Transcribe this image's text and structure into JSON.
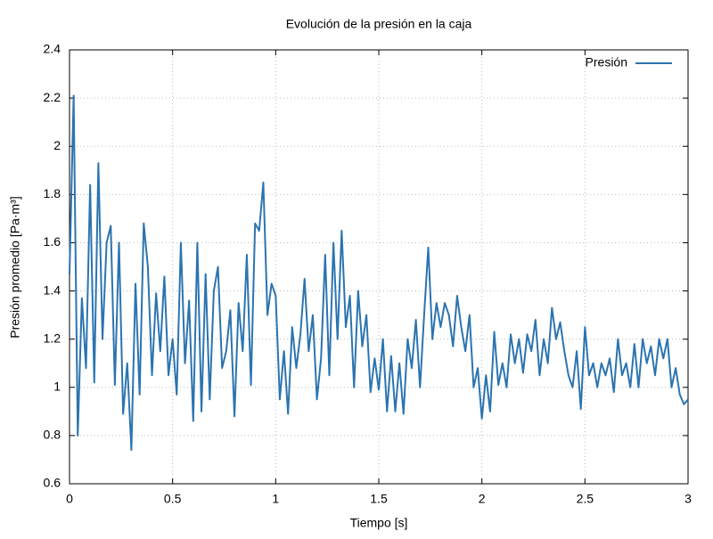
{
  "chart_data": {
    "type": "line",
    "title": "Evolución de la presión en la caja",
    "xlabel": "Tiempo [s]",
    "ylabel": "Presión promedio [Pa·m³]",
    "x": [
      0,
      0.02,
      0.04,
      0.06,
      0.08,
      0.1,
      0.12,
      0.14,
      0.16,
      0.18,
      0.2,
      0.22,
      0.24,
      0.26,
      0.28,
      0.3,
      0.32,
      0.34,
      0.36,
      0.38,
      0.4,
      0.42,
      0.44,
      0.46,
      0.48,
      0.5,
      0.52,
      0.54,
      0.56,
      0.58,
      0.6,
      0.62,
      0.64,
      0.66,
      0.68,
      0.7,
      0.72,
      0.74,
      0.76,
      0.78,
      0.8,
      0.82,
      0.84,
      0.86,
      0.88,
      0.9,
      0.92,
      0.94,
      0.96,
      0.98,
      1,
      1.02,
      1.04,
      1.06,
      1.08,
      1.1,
      1.12,
      1.14,
      1.16,
      1.18,
      1.2,
      1.22,
      1.24,
      1.26,
      1.28,
      1.3,
      1.32,
      1.34,
      1.36,
      1.38,
      1.4,
      1.42,
      1.44,
      1.46,
      1.48,
      1.5,
      1.52,
      1.54,
      1.56,
      1.58,
      1.6,
      1.62,
      1.64,
      1.66,
      1.68,
      1.7,
      1.72,
      1.74,
      1.76,
      1.78,
      1.8,
      1.82,
      1.84,
      1.86,
      1.88,
      1.9,
      1.92,
      1.94,
      1.96,
      1.98,
      2,
      2.02,
      2.04,
      2.06,
      2.08,
      2.1,
      2.12,
      2.14,
      2.16,
      2.18,
      2.2,
      2.22,
      2.24,
      2.26,
      2.28,
      2.3,
      2.32,
      2.34,
      2.36,
      2.38,
      2.4,
      2.42,
      2.44,
      2.46,
      2.48,
      2.5,
      2.52,
      2.54,
      2.56,
      2.58,
      2.6,
      2.62,
      2.64,
      2.66,
      2.68,
      2.7,
      2.72,
      2.74,
      2.76,
      2.78,
      2.8,
      2.82,
      2.84,
      2.86,
      2.88,
      2.9,
      2.92,
      2.94,
      2.96,
      2.98,
      3
    ],
    "series": [
      {
        "name": "Presión",
        "color": "#2b74b0",
        "values": [
          1.47,
          2.21,
          0.8,
          1.37,
          1.08,
          1.84,
          1.02,
          1.93,
          1.2,
          1.6,
          1.67,
          1.01,
          1.6,
          0.89,
          1.1,
          0.74,
          1.43,
          0.97,
          1.68,
          1.5,
          1.05,
          1.39,
          1.15,
          1.46,
          1.05,
          1.2,
          0.97,
          1.6,
          1.1,
          1.36,
          0.86,
          1.6,
          0.9,
          1.47,
          0.95,
          1.4,
          1.5,
          1.08,
          1.15,
          1.32,
          0.88,
          1.35,
          1.15,
          1.55,
          1.01,
          1.68,
          1.65,
          1.85,
          1.3,
          1.43,
          1.38,
          0.95,
          1.15,
          0.89,
          1.25,
          1.08,
          1.22,
          1.45,
          1.15,
          1.3,
          0.95,
          1.12,
          1.55,
          1.05,
          1.6,
          1.2,
          1.65,
          1.25,
          1.38,
          1.0,
          1.4,
          1.17,
          1.3,
          0.98,
          1.12,
          0.99,
          1.2,
          0.9,
          1.13,
          0.9,
          1.1,
          0.89,
          1.2,
          1.08,
          1.28,
          1.0,
          1.3,
          1.58,
          1.2,
          1.35,
          1.25,
          1.35,
          1.3,
          1.17,
          1.38,
          1.25,
          1.15,
          1.3,
          1.0,
          1.08,
          0.87,
          1.05,
          0.9,
          1.23,
          1.01,
          1.1,
          1.0,
          1.22,
          1.1,
          1.2,
          1.06,
          1.22,
          1.15,
          1.28,
          1.05,
          1.2,
          1.1,
          1.33,
          1.2,
          1.27,
          1.15,
          1.05,
          1.0,
          1.15,
          0.91,
          1.25,
          1.05,
          1.1,
          1.0,
          1.1,
          1.05,
          1.12,
          0.98,
          1.2,
          1.05,
          1.1,
          1.0,
          1.18,
          1.0,
          1.2,
          1.1,
          1.17,
          1.05,
          1.2,
          1.12,
          1.2,
          1.0,
          1.08,
          0.97,
          0.93,
          0.95
        ]
      }
    ],
    "xlim": [
      0,
      3
    ],
    "xticks": [
      0,
      0.5,
      1,
      1.5,
      2,
      2.5,
      3
    ],
    "ylim": [
      0.6,
      2.4
    ],
    "yticks": [
      0.6,
      0.8,
      1,
      1.2,
      1.4,
      1.6,
      1.8,
      2,
      2.2,
      2.4
    ],
    "grid": true,
    "legend": "top-right"
  }
}
